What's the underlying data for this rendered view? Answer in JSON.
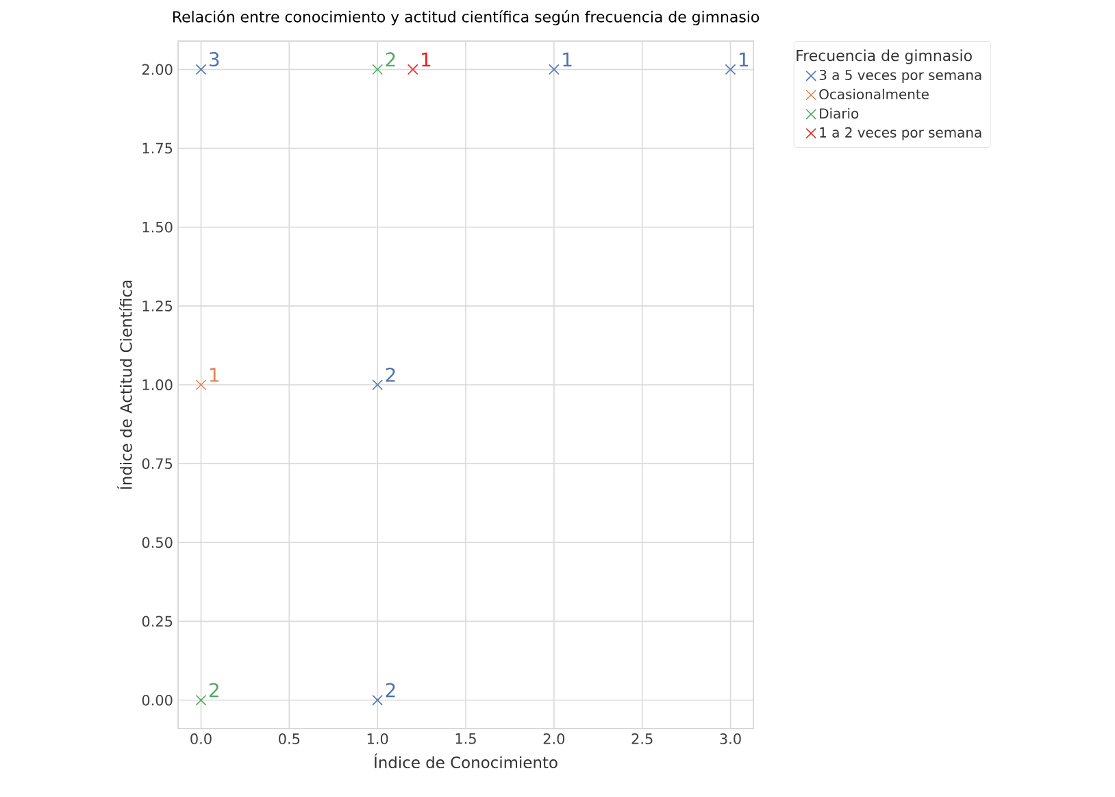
{
  "chart_data": {
    "type": "scatter",
    "title": "Relación entre conocimiento y actitud científica según frecuencia de gimnasio",
    "xlabel": "Índice de Conocimiento",
    "ylabel": "Índice de Actitud Científica",
    "legend_title": "Frecuencia de gimnasio",
    "series": [
      {
        "name": "3 a 5 veces por semana",
        "color": "#4c72b0",
        "x": [
          0,
          2,
          3,
          1,
          1
        ],
        "values": [
          2,
          2,
          2,
          1,
          0
        ]
      },
      {
        "name": "Ocasionalmente",
        "color": "#dd8452",
        "x": [
          0
        ],
        "values": [
          1
        ]
      },
      {
        "name": "Diario",
        "color": "#55a868",
        "x": [
          1,
          0
        ],
        "values": [
          2,
          0
        ]
      },
      {
        "name": "1 a 2 veces por semana",
        "color": "#ee1c1c",
        "x": [
          1.2
        ],
        "values": [
          2
        ]
      }
    ],
    "annotations": [
      {
        "text": "3",
        "x": 0,
        "y": 2
      },
      {
        "text": "1",
        "x": 2,
        "y": 2
      },
      {
        "text": "1",
        "x": 3,
        "y": 2
      },
      {
        "text": "2",
        "x": 1,
        "y": 1
      },
      {
        "text": "2",
        "x": 1,
        "y": 0
      },
      {
        "text": "1",
        "x": 0,
        "y": 1
      },
      {
        "text": "2",
        "x": 1,
        "y": 2
      },
      {
        "text": "2",
        "x": 0,
        "y": 0
      },
      {
        "text": "1",
        "x": 1.2,
        "y": 2
      }
    ],
    "xlim": [
      -0.13,
      3.13
    ],
    "ylim": [
      -0.09,
      2.09
    ],
    "xticks": [
      {
        "value": 0,
        "label": "0.0"
      },
      {
        "value": 0.5,
        "label": "0.5"
      },
      {
        "value": 1,
        "label": "1.0"
      },
      {
        "value": 1.5,
        "label": "1.5"
      },
      {
        "value": 2,
        "label": "2.0"
      },
      {
        "value": 2.5,
        "label": "2.5"
      },
      {
        "value": 3,
        "label": "3.0"
      }
    ],
    "yticks": [
      {
        "value": 0,
        "label": "0.00"
      },
      {
        "value": 0.25,
        "label": "0.25"
      },
      {
        "value": 0.5,
        "label": "0.50"
      },
      {
        "value": 0.75,
        "label": "0.75"
      },
      {
        "value": 1,
        "label": "1.00"
      },
      {
        "value": 1.25,
        "label": "1.25"
      },
      {
        "value": 1.5,
        "label": "1.50"
      },
      {
        "value": 1.75,
        "label": "1.75"
      },
      {
        "value": 2,
        "label": "2.00"
      }
    ],
    "grid": true,
    "legend": "top right",
    "marker": "cross"
  }
}
